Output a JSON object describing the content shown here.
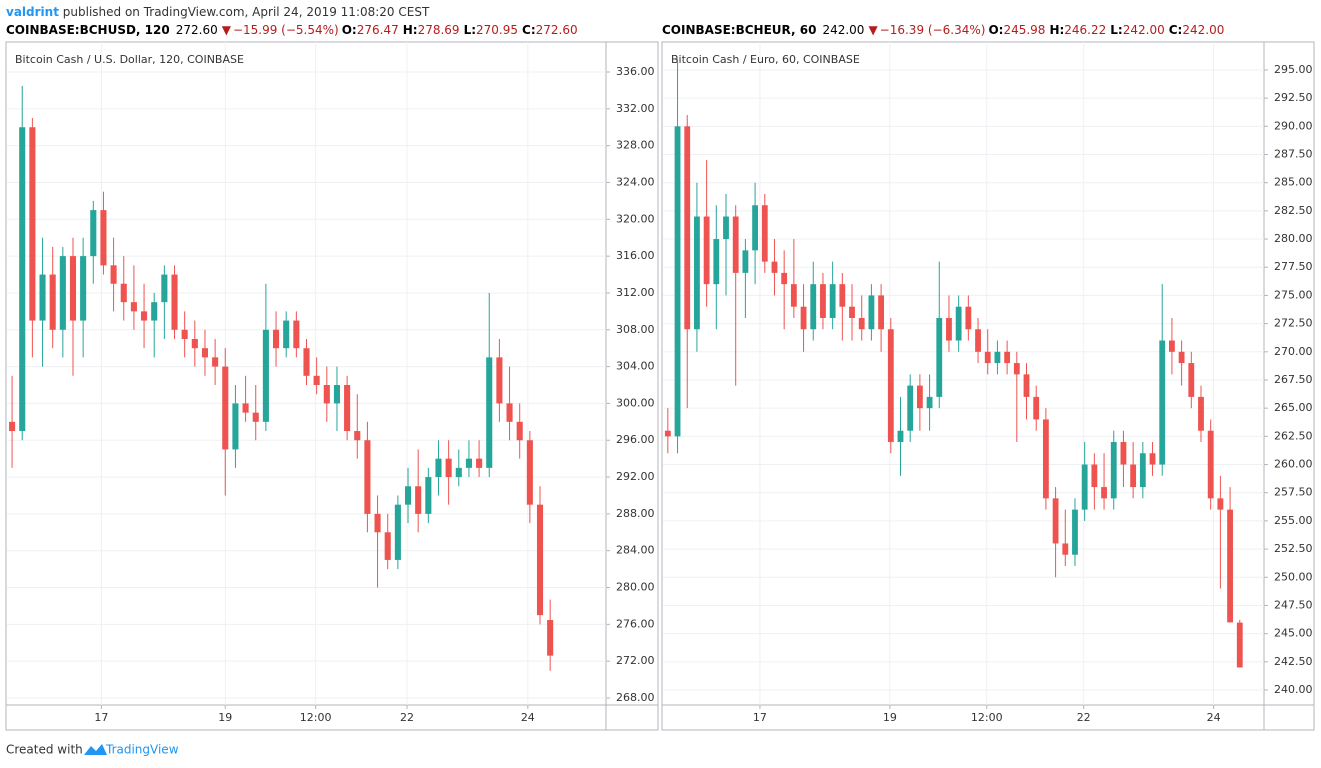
{
  "header": {
    "author": "valdrint",
    "published": "published on TradingView.com, April 24, 2019 11:08:20 CEST"
  },
  "footer": {
    "created": "Created with",
    "brand": "TradingView"
  },
  "chart_data": [
    {
      "type": "candlestick",
      "symbol": "COINBASE:BCHUSD, 120",
      "last": "272.60",
      "arrow": "▼",
      "change": "−15.99 (−5.54%)",
      "ohlc_labels": [
        {
          "label": "O:",
          "value": "276.47"
        },
        {
          "label": "H:",
          "value": "278.69"
        },
        {
          "label": "L:",
          "value": "270.95"
        },
        {
          "label": "C:",
          "value": "272.60"
        }
      ],
      "title": "Bitcoin Cash / U.S. Dollar, 120, COINBASE",
      "open": [
        298,
        297,
        330,
        309,
        314,
        308,
        316,
        309,
        316,
        321,
        315,
        313,
        311,
        310,
        309,
        311,
        314,
        308,
        307,
        306,
        305,
        304,
        295,
        300,
        299,
        298,
        308,
        306,
        309,
        306,
        303,
        302,
        300,
        302,
        297,
        296,
        288,
        286,
        283,
        289,
        291,
        288,
        292,
        294,
        292,
        293,
        294,
        293,
        305,
        300,
        298,
        296,
        289,
        276.47
      ],
      "high": [
        303,
        334.5,
        331,
        318,
        317,
        317,
        318,
        318,
        322,
        323,
        318,
        316,
        315,
        313,
        312,
        315,
        315,
        310,
        309,
        308,
        307,
        306,
        302,
        303,
        302,
        313,
        310,
        310,
        310,
        307,
        305,
        304,
        304,
        303,
        301,
        298,
        290,
        288,
        290,
        293,
        295,
        293,
        296,
        296,
        295,
        296,
        296,
        312,
        307,
        304,
        300,
        297,
        291,
        278.69
      ],
      "low": [
        293,
        296,
        305,
        304,
        306,
        305,
        303,
        305,
        313,
        314,
        310,
        309,
        308,
        306,
        305,
        307,
        307,
        305,
        304,
        303,
        302,
        290,
        293,
        298,
        296,
        297,
        304,
        305,
        305,
        302,
        301,
        298,
        297,
        296,
        294,
        286,
        280,
        282,
        282,
        287,
        286,
        287,
        290,
        289,
        291,
        292,
        292,
        292,
        298,
        296,
        294,
        287,
        276,
        270.95
      ],
      "close": [
        297,
        330,
        309,
        314,
        308,
        316,
        309,
        316,
        321,
        315,
        313,
        311,
        310,
        309,
        311,
        314,
        308,
        307,
        306,
        305,
        304,
        295,
        300,
        299,
        298,
        308,
        306,
        309,
        306,
        303,
        302,
        300,
        302,
        297,
        296,
        288,
        286,
        283,
        289,
        291,
        288,
        292,
        294,
        292,
        293,
        294,
        293,
        305,
        300,
        298,
        296,
        289,
        277,
        272.6
      ],
      "up_color": "#26a69a",
      "down_color": "#ef5350",
      "grid": true,
      "xlim": [
        -0.5,
        58.5
      ],
      "xticks": [
        {
          "value": 8.8,
          "label": "17"
        },
        {
          "value": 21,
          "label": "19"
        },
        {
          "value": 29.9,
          "label": "12:00"
        },
        {
          "value": 38.9,
          "label": "22"
        },
        {
          "value": 50.8,
          "label": "24"
        }
      ],
      "ylim": [
        267.24,
        339.26
      ],
      "yticks": [
        {
          "value": 268,
          "label": "268.00"
        },
        {
          "value": 272,
          "label": "272.00"
        },
        {
          "value": 276,
          "label": "276.00"
        },
        {
          "value": 280,
          "label": "280.00"
        },
        {
          "value": 284,
          "label": "284.00"
        },
        {
          "value": 288,
          "label": "288.00"
        },
        {
          "value": 292,
          "label": "292.00"
        },
        {
          "value": 296,
          "label": "296.00"
        },
        {
          "value": 300,
          "label": "300.00"
        },
        {
          "value": 304,
          "label": "304.00"
        },
        {
          "value": 308,
          "label": "308.00"
        },
        {
          "value": 312,
          "label": "312.00"
        },
        {
          "value": 316,
          "label": "316.00"
        },
        {
          "value": 320,
          "label": "320.00"
        },
        {
          "value": 324,
          "label": "324.00"
        },
        {
          "value": 328,
          "label": "328.00"
        },
        {
          "value": 332,
          "label": "332.00"
        },
        {
          "value": 336,
          "label": "336.00"
        }
      ]
    },
    {
      "type": "candlestick",
      "symbol": "COINBASE:BCHEUR, 60",
      "last": "242.00",
      "arrow": "▼",
      "change": "−16.39 (−6.34%)",
      "ohlc_labels": [
        {
          "label": "O:",
          "value": "245.98"
        },
        {
          "label": "H:",
          "value": "246.22"
        },
        {
          "label": "L:",
          "value": "242.00"
        },
        {
          "label": "C:",
          "value": "242.00"
        }
      ],
      "title": "Bitcoin Cash / Euro, 60, COINBASE",
      "open": [
        263,
        262.5,
        290,
        272,
        282,
        276,
        280,
        282,
        277,
        279,
        283,
        278,
        277,
        276,
        274,
        272,
        276,
        273,
        276,
        274,
        273,
        272,
        275,
        272,
        262,
        263,
        267,
        265,
        266,
        273,
        271,
        274,
        272,
        270,
        269,
        270,
        269,
        268,
        266,
        264,
        257,
        253,
        252,
        256,
        260,
        258,
        257,
        262,
        260,
        258,
        261,
        260,
        271,
        270,
        269,
        266,
        263,
        257,
        256,
        245.98
      ],
      "high": [
        265,
        296,
        291,
        285,
        287,
        283,
        284,
        283,
        280,
        285,
        284,
        280,
        279,
        280,
        276,
        278,
        277,
        278,
        277,
        276,
        275,
        276,
        276,
        273,
        266,
        268,
        268,
        268,
        278,
        275,
        275,
        275,
        273,
        272,
        271,
        271,
        270,
        269,
        267,
        265,
        258,
        256,
        257,
        262,
        261,
        261,
        263,
        263,
        262,
        262,
        262,
        276,
        273,
        271,
        270,
        267,
        264,
        259,
        258,
        246.22
      ],
      "low": [
        261,
        261,
        265,
        270,
        274,
        272,
        275,
        267,
        273,
        276,
        277,
        275,
        272,
        273,
        270,
        271,
        272,
        272,
        271,
        271,
        271,
        271,
        270,
        261,
        259,
        262,
        263,
        263,
        265,
        270,
        270,
        271,
        269,
        268,
        268,
        268,
        262,
        264,
        263,
        256,
        250,
        251,
        251,
        255,
        256,
        256,
        256,
        258,
        257,
        257,
        259,
        259,
        268,
        267,
        265,
        262,
        256,
        249,
        246,
        242
      ],
      "close": [
        262.5,
        290,
        272,
        282,
        276,
        280,
        282,
        277,
        279,
        283,
        278,
        277,
        276,
        274,
        272,
        276,
        273,
        276,
        274,
        273,
        272,
        275,
        272,
        262,
        263,
        267,
        265,
        266,
        273,
        271,
        274,
        272,
        270,
        269,
        270,
        269,
        268,
        266,
        264,
        257,
        253,
        252,
        256,
        260,
        258,
        257,
        262,
        260,
        258,
        261,
        260,
        271,
        270,
        269,
        266,
        263,
        257,
        256,
        246,
        242
      ],
      "up_color": "#26a69a",
      "down_color": "#ef5350",
      "grid": true,
      "xlim": [
        -0.5,
        61.5
      ],
      "xticks": [
        {
          "value": 9.5,
          "label": "17"
        },
        {
          "value": 22.9,
          "label": "19"
        },
        {
          "value": 32.9,
          "label": "12:00"
        },
        {
          "value": 42.9,
          "label": "22"
        },
        {
          "value": 56.3,
          "label": "24"
        }
      ],
      "ylim": [
        238.67,
        297.48
      ],
      "yticks": [
        {
          "value": 240,
          "label": "240.00"
        },
        {
          "value": 242.5,
          "label": "242.50"
        },
        {
          "value": 245,
          "label": "245.00"
        },
        {
          "value": 247.5,
          "label": "247.50"
        },
        {
          "value": 250,
          "label": "250.00"
        },
        {
          "value": 252.5,
          "label": "252.50"
        },
        {
          "value": 255,
          "label": "255.00"
        },
        {
          "value": 257.5,
          "label": "257.50"
        },
        {
          "value": 260,
          "label": "260.00"
        },
        {
          "value": 262.5,
          "label": "262.50"
        },
        {
          "value": 265,
          "label": "265.00"
        },
        {
          "value": 267.5,
          "label": "267.50"
        },
        {
          "value": 270,
          "label": "270.00"
        },
        {
          "value": 272.5,
          "label": "272.50"
        },
        {
          "value": 275,
          "label": "275.00"
        },
        {
          "value": 277.5,
          "label": "277.50"
        },
        {
          "value": 280,
          "label": "280.00"
        },
        {
          "value": 282.5,
          "label": "282.50"
        },
        {
          "value": 285,
          "label": "285.00"
        },
        {
          "value": 287.5,
          "label": "287.50"
        },
        {
          "value": 290,
          "label": "290.00"
        },
        {
          "value": 292.5,
          "label": "292.50"
        },
        {
          "value": 295,
          "label": "295.00"
        }
      ]
    }
  ]
}
